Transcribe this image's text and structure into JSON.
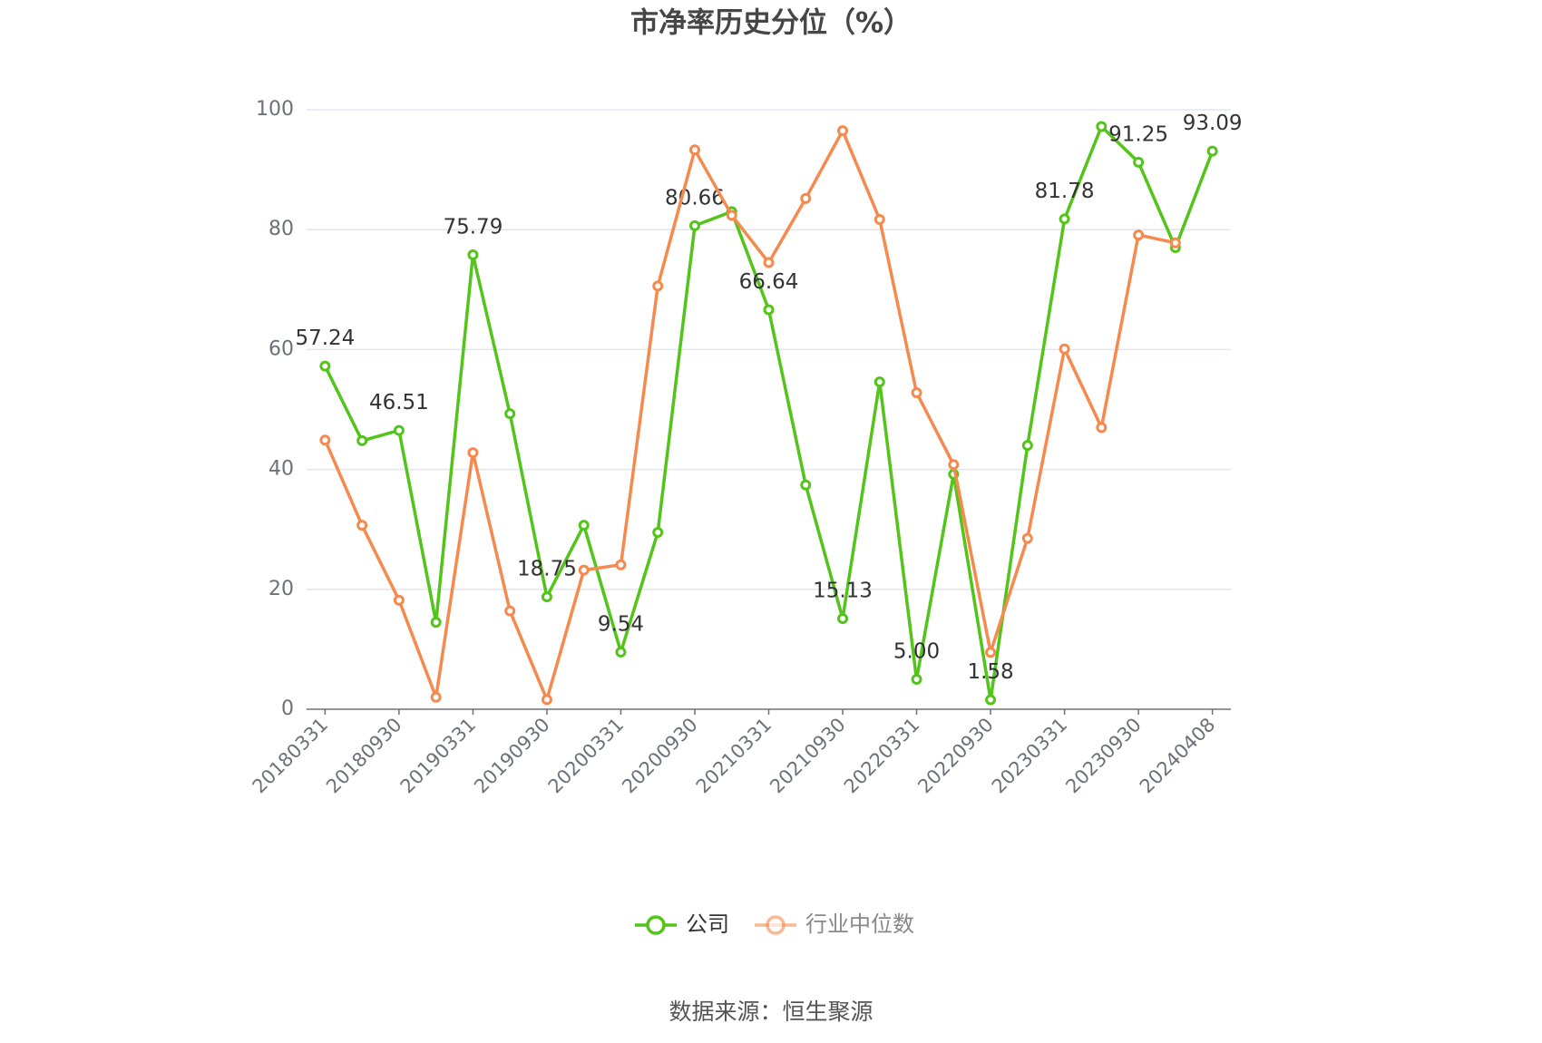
{
  "chart_data": {
    "type": "line",
    "title": "市净率历史分位（%）",
    "source": "数据来源：恒生聚源",
    "categories": [
      "20180331",
      null,
      "20180930",
      null,
      "20190331",
      null,
      "20190930",
      null,
      "20200331",
      null,
      "20200930",
      null,
      "20210331",
      null,
      "20210930",
      null,
      "20220331",
      null,
      "20220930",
      null,
      "20230331",
      null,
      "20230930",
      null,
      "20240408"
    ],
    "series": [
      {
        "name": "公司",
        "color": "#52c41a",
        "values": [
          57.24,
          44.8,
          46.51,
          14.5,
          75.79,
          49.3,
          18.75,
          30.7,
          9.54,
          29.5,
          80.66,
          83.0,
          66.64,
          37.4,
          15.13,
          54.6,
          5.0,
          39.2,
          1.58,
          44.0,
          81.78,
          97.2,
          91.25,
          77.0,
          93.09
        ],
        "value_labels": [
          "57.24",
          null,
          "46.51",
          null,
          "75.79",
          null,
          "18.75",
          null,
          "9.54",
          null,
          "80.66",
          null,
          "66.64",
          null,
          "15.13",
          null,
          "5.00",
          null,
          "1.58",
          null,
          "81.78",
          null,
          "91.25",
          null,
          "93.09"
        ]
      },
      {
        "name": "行业中位数",
        "color": "#f5894e",
        "values": [
          44.9,
          30.7,
          18.2,
          2.0,
          42.8,
          16.4,
          1.6,
          23.2,
          24.1,
          70.6,
          93.3,
          82.4,
          74.5,
          85.2,
          96.5,
          81.7,
          52.8,
          40.8,
          9.5,
          28.5,
          60.1,
          47.0,
          79.1,
          77.8,
          null
        ]
      }
    ],
    "ylim": [
      0,
      100
    ],
    "yticks": [
      0,
      20,
      40,
      60,
      80,
      100
    ],
    "grid": true,
    "legend": "bottom"
  }
}
